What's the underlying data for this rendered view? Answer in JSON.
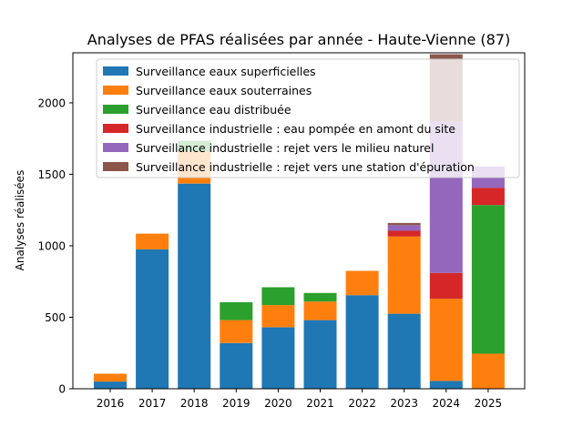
{
  "chart_data": {
    "type": "bar",
    "stacked": true,
    "title": "Analyses de PFAS réalisées par année - Haute-Vienne (87)",
    "xlabel": "",
    "ylabel": "Analyses réalisées",
    "ylim": [
      0,
      2350
    ],
    "yticks": [
      0,
      500,
      1000,
      1500,
      2000
    ],
    "legend_position": "top-left",
    "grid": false,
    "categories": [
      "2016",
      "2017",
      "2018",
      "2019",
      "2020",
      "2021",
      "2022",
      "2023",
      "2024",
      "2025"
    ],
    "series": [
      {
        "name": "Surveillance eaux superficielles",
        "color": "#1f77b4",
        "values": [
          50,
          975,
          1435,
          320,
          430,
          480,
          655,
          525,
          55,
          0
        ]
      },
      {
        "name": "Surveillance eaux souterraines",
        "color": "#ff7f0e",
        "values": [
          55,
          110,
          225,
          160,
          155,
          130,
          170,
          540,
          575,
          245
        ]
      },
      {
        "name": "Surveillance eau distribuée",
        "color": "#2ca02c",
        "values": [
          0,
          0,
          75,
          125,
          125,
          60,
          0,
          0,
          0,
          1040
        ]
      },
      {
        "name": "Surveillance industrielle : eau pompée en amont du site",
        "color": "#d62728",
        "values": [
          0,
          0,
          0,
          0,
          0,
          0,
          0,
          40,
          180,
          120
        ]
      },
      {
        "name": "Surveillance industrielle : rejet vers le milieu naturel",
        "color": "#9467bd",
        "values": [
          0,
          0,
          0,
          0,
          0,
          0,
          0,
          40,
          1060,
          150
        ]
      },
      {
        "name": "Surveillance industrielle : rejet vers une station d'épuration",
        "color": "#8c564b",
        "values": [
          0,
          0,
          0,
          0,
          0,
          0,
          0,
          15,
          470,
          0
        ]
      }
    ]
  }
}
